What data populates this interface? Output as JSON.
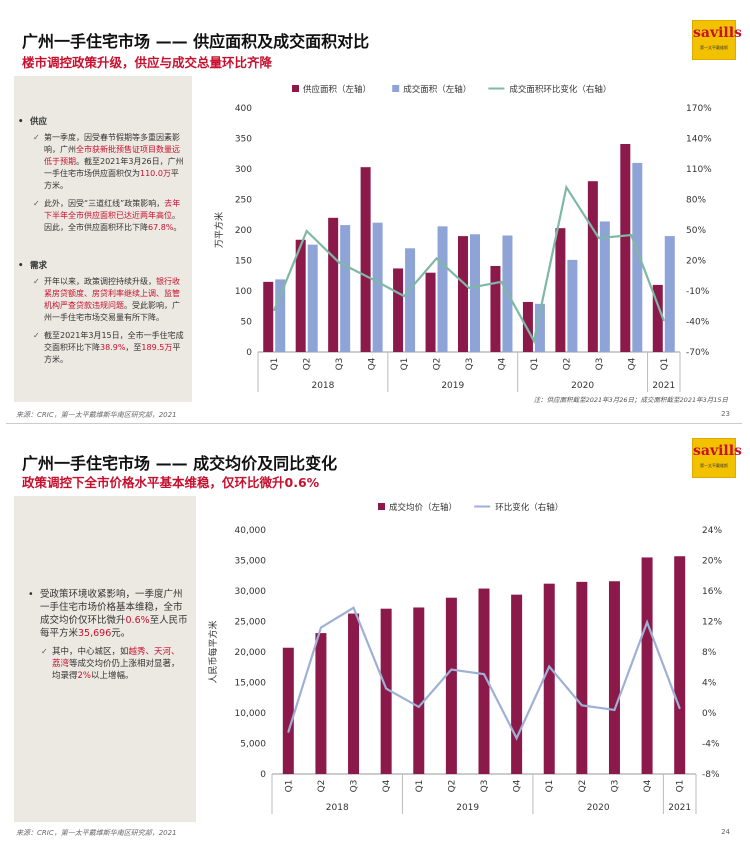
{
  "slide1": {
    "title": "广州一手住宅市场 —— 供应面积及成交面积对比",
    "subtitle": "楼市调控政策升级，供应与成交总量环比齐降",
    "logo": "savills",
    "logo_sub": "第一太平戴维斯",
    "panel": {
      "supply_head": "供应",
      "supply_1a": "第一季度，因受春节假期等多重因素影响，广州",
      "supply_1b": "全市获新批预售证项目数量远低于预期",
      "supply_1c": "。截至2021年3月26日，广州一手住宅市场供应面积仅为",
      "supply_1d": "110.0万",
      "supply_1e": "平方米。",
      "supply_2a": "此外，因受“三道红线”政策影响，",
      "supply_2b": "去年下半年全市供应面积已达近两年高位",
      "supply_2c": "。因此，全市供应面积环比下降",
      "supply_2d": "67.8%",
      "supply_2e": "。",
      "demand_head": "需求",
      "demand_1a": "开年以来，政策调控持续升级，",
      "demand_1b": "银行收紧房贷额度、房贷利率继续上调、监管机构严查贷款违规问题",
      "demand_1c": "。受此影响，广州一手住宅市场交易量有所下降。",
      "demand_2a": "截至2021年3月15日，全市一手住宅成交面积环比下降",
      "demand_2b": "38.9%",
      "demand_2c": "，至",
      "demand_2d": "189.5万",
      "demand_2e": "平方米。"
    },
    "note": "注：供应面积截至2021年3月26日；成交面积截至2021年3月15日",
    "footer": "来源：CRIC，第一太平戴维斯华南区研究部，2021",
    "page": "23"
  },
  "slide2": {
    "title": "广州一手住宅市场 —— 成交均价及同比变化",
    "subtitle": "政策调控下全市价格水平基本维稳，仅环比微升0.6%",
    "logo": "savills",
    "logo_sub": "第一太平戴维斯",
    "panel": {
      "main_a": "受政策环境收紧影响，一季度广州一手住宅市场价格基本维稳，全市成交均价仅环比微升",
      "main_b": "0.6%",
      "main_c": "至人民币每平方米",
      "main_d": "35,696",
      "main_e": "元。",
      "sub_a": "其中，中心城区，如",
      "sub_b": "越秀、天河、荔湾",
      "sub_c": "等成交均价仍上涨相对显著，均录得",
      "sub_d": "2%",
      "sub_e": "以上增幅。"
    },
    "footer": "来源：CRIC，第一太平戴维斯华南区研究部，2021",
    "page": "24"
  },
  "chart_data": [
    {
      "type": "bar",
      "categories": [
        "Q1",
        "Q2",
        "Q3",
        "Q4",
        "Q1",
        "Q2",
        "Q3",
        "Q4",
        "Q1",
        "Q2",
        "Q3",
        "Q4",
        "Q1"
      ],
      "year_groups": [
        {
          "label": "2018",
          "count": 4
        },
        {
          "label": "2019",
          "count": 4
        },
        {
          "label": "2020",
          "count": 4
        },
        {
          "label": "2021",
          "count": 1
        }
      ],
      "series": [
        {
          "name": "供应面积（左轴）",
          "kind": "bar",
          "axis": "left",
          "color": "#8b1a4a",
          "values": [
            115,
            184,
            220,
            303,
            137,
            130,
            190,
            141,
            82,
            203,
            280,
            341,
            110
          ]
        },
        {
          "name": "成交面积（左轴）",
          "kind": "bar",
          "axis": "left",
          "color": "#8ea3d6",
          "values": [
            119,
            176,
            208,
            212,
            170,
            206,
            193,
            191,
            79,
            151,
            214,
            310,
            190
          ]
        },
        {
          "name": "成交面积环比变化（右轴）",
          "kind": "line",
          "axis": "right",
          "color": "#7fb8a4",
          "values": [
            -29,
            49,
            18,
            2,
            -15,
            22,
            -7,
            -1,
            -59,
            92,
            42,
            45,
            -39
          ]
        }
      ],
      "ylabel": "万平方米",
      "ylim": [
        0,
        400
      ],
      "yticks": [
        "0",
        "50",
        "100",
        "150",
        "200",
        "250",
        "300",
        "350",
        "400"
      ],
      "y2lim": [
        -70,
        170
      ],
      "y2ticks": [
        "-70%",
        "-40%",
        "-10%",
        "20%",
        "50%",
        "80%",
        "110%",
        "140%",
        "170%"
      ],
      "legend": "top"
    },
    {
      "type": "bar",
      "categories": [
        "Q1",
        "Q2",
        "Q3",
        "Q4",
        "Q1",
        "Q2",
        "Q3",
        "Q4",
        "Q1",
        "Q2",
        "Q3",
        "Q4",
        "Q1"
      ],
      "year_groups": [
        {
          "label": "2018",
          "count": 4
        },
        {
          "label": "2019",
          "count": 4
        },
        {
          "label": "2020",
          "count": 4
        },
        {
          "label": "2021",
          "count": 1
        }
      ],
      "series": [
        {
          "name": "成交均价（左轴）",
          "kind": "bar",
          "axis": "left",
          "color": "#8b1a4a",
          "values": [
            20700,
            23100,
            26300,
            27100,
            27300,
            28900,
            30400,
            29400,
            31200,
            31500,
            31600,
            35500,
            35696
          ]
        },
        {
          "name": "环比变化（右轴）",
          "kind": "line",
          "axis": "right",
          "color": "#9fb0d6",
          "values": [
            -2.5,
            11.2,
            13.8,
            3.2,
            0.8,
            5.7,
            5.1,
            -3.3,
            6.1,
            1.0,
            0.4,
            11.9,
            0.6
          ]
        }
      ],
      "ylabel": "人民币每平方米",
      "ylim": [
        0,
        40000
      ],
      "yticks": [
        "0",
        "5,000",
        "10,000",
        "15,000",
        "20,000",
        "25,000",
        "30,000",
        "35,000",
        "40,000"
      ],
      "y2lim": [
        -8,
        24
      ],
      "y2ticks": [
        "-8%",
        "-4%",
        "0%",
        "4%",
        "8%",
        "12%",
        "16%",
        "20%",
        "24%"
      ],
      "legend": "top"
    }
  ]
}
